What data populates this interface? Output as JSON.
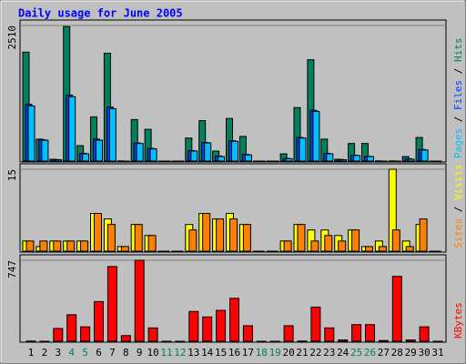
{
  "title": "Daily usage for June 2005",
  "legend_separator": "/",
  "chart_data": [
    {
      "type": "bar",
      "ylim": [
        0,
        2510
      ],
      "yticks": [
        2510
      ],
      "series": [
        {
          "name": "Hits",
          "color": "#00805c",
          "values": [
            2020,
            420,
            50,
            2490,
            300,
            830,
            2000,
            20,
            780,
            600,
            0,
            0,
            440,
            760,
            200,
            800,
            470,
            0,
            0,
            150,
            1000,
            1880,
            420,
            50,
            340,
            340,
            20,
            20,
            100,
            450,
            0
          ]
        },
        {
          "name": "Files",
          "color": "#0040ff",
          "values": [
            1060,
            410,
            45,
            1230,
            160,
            420,
            1010,
            15,
            350,
            250,
            0,
            0,
            210,
            360,
            110,
            390,
            140,
            0,
            0,
            65,
            450,
            950,
            160,
            45,
            125,
            105,
            15,
            15,
            60,
            230,
            0
          ]
        },
        {
          "name": "Pages",
          "color": "#00c0ff",
          "values": [
            1030,
            400,
            40,
            1200,
            150,
            400,
            980,
            10,
            340,
            240,
            0,
            0,
            200,
            350,
            100,
            380,
            130,
            0,
            0,
            60,
            440,
            930,
            150,
            40,
            120,
            100,
            10,
            10,
            50,
            220,
            0
          ]
        }
      ]
    },
    {
      "type": "bar",
      "ylim": [
        0,
        15
      ],
      "yticks": [
        15
      ],
      "series": [
        {
          "name": "Visits",
          "color": "#ffff00",
          "values": [
            2,
            1,
            2,
            2,
            2,
            7,
            6,
            1,
            5,
            3,
            0,
            0,
            5,
            7,
            6,
            7,
            5,
            0,
            0,
            2,
            5,
            4,
            4,
            3,
            4,
            1,
            2,
            15,
            2,
            5,
            0
          ]
        },
        {
          "name": "Sites",
          "color": "#ff8000",
          "values": [
            2,
            2,
            2,
            2,
            2,
            7,
            5,
            1,
            5,
            3,
            0,
            0,
            4,
            7,
            6,
            6,
            5,
            0,
            0,
            2,
            5,
            2,
            3,
            2,
            4,
            1,
            1,
            4,
            1,
            6,
            0
          ]
        }
      ]
    },
    {
      "type": "bar",
      "ylim": [
        0,
        747
      ],
      "yticks": [
        747
      ],
      "categories": [
        "1",
        "2",
        "3",
        "4",
        "5",
        "6",
        "7",
        "8",
        "9",
        "10",
        "11",
        "12",
        "13",
        "14",
        "15",
        "16",
        "17",
        "18",
        "19",
        "20",
        "21",
        "22",
        "23",
        "24",
        "25",
        "26",
        "27",
        "28",
        "29",
        "30",
        "31"
      ],
      "category_colors": [
        "#000000",
        "#000000",
        "#000000",
        "#00805c",
        "#00805c",
        "#000000",
        "#000000",
        "#000000",
        "#000000",
        "#000000",
        "#00805c",
        "#00805c",
        "#000000",
        "#000000",
        "#000000",
        "#000000",
        "#000000",
        "#00805c",
        "#00805c",
        "#000000",
        "#000000",
        "#000000",
        "#000000",
        "#000000",
        "#00805c",
        "#00805c",
        "#000000",
        "#000000",
        "#000000",
        "#000000",
        "#000000"
      ],
      "series": [
        {
          "name": "KBytes",
          "color": "#ff0000",
          "values": [
            10,
            0,
            125,
            250,
            140,
            370,
            690,
            60,
            747,
            130,
            0,
            0,
            280,
            230,
            290,
            400,
            150,
            0,
            0,
            150,
            10,
            320,
            130,
            20,
            160,
            160,
            15,
            600,
            20,
            140,
            0
          ]
        }
      ]
    }
  ]
}
